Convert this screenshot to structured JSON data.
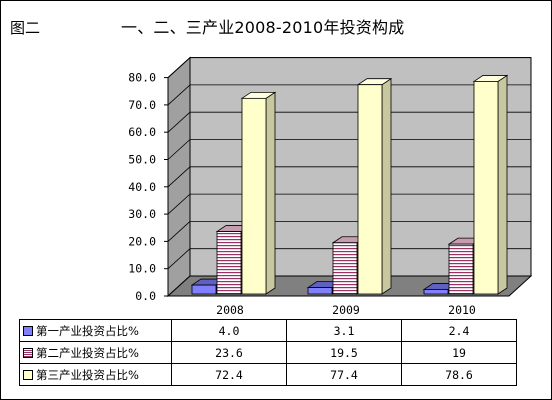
{
  "figure_label": "图二",
  "chart_data": {
    "type": "bar",
    "title": "一、二、三产业2008-2010年投资构成",
    "categories": [
      "2008",
      "2009",
      "2010"
    ],
    "series": [
      {
        "name": "第一产业投资占比%",
        "values": [
          "4.0",
          "3.1",
          "2.4"
        ],
        "color": "#8080ff",
        "pattern": "solid"
      },
      {
        "name": "第二产业投资占比%",
        "values": [
          "23.6",
          "19.5",
          "19"
        ],
        "color": "#993366",
        "pattern": "horizontal-stripes"
      },
      {
        "name": "第三产业投资占比%",
        "values": [
          "72.4",
          "77.4",
          "78.6"
        ],
        "color": "#ffffcc",
        "pattern": "solid"
      }
    ],
    "ylim": [
      0,
      80
    ],
    "yticks": [
      "0.0",
      "10.0",
      "20.0",
      "30.0",
      "40.0",
      "50.0",
      "60.0",
      "70.0",
      "80.0"
    ],
    "grid": true,
    "three_d": true,
    "wall_color": "#c0c0c0",
    "data_table": true
  }
}
